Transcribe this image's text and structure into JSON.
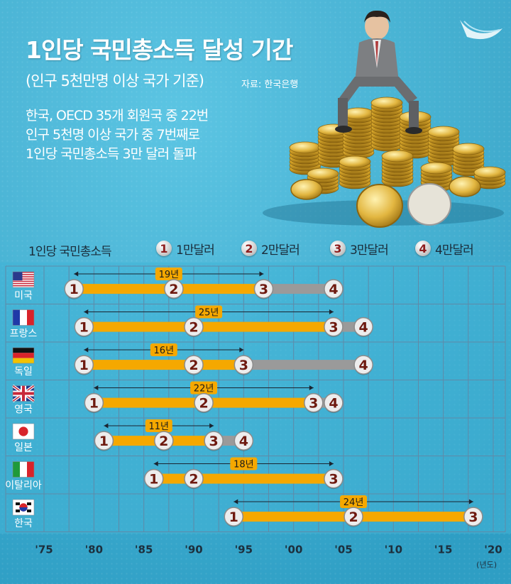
{
  "header": {
    "title": "1인당 국민총소득 달성 기간",
    "subtitle": "(인구 5천만명 이상 국가 기준)",
    "source": "자료: 한국은행",
    "description": [
      "한국, OECD 35개 회원국 중 22번",
      "인구 5천명 이상 국가 중 7번째로",
      "1인당 국민총소득 3만 달러 돌파"
    ]
  },
  "legend": {
    "title": "1인당 국민총소득",
    "items": [
      {
        "badge": "1",
        "label": "1만달러"
      },
      {
        "badge": "2",
        "label": "2만달러"
      },
      {
        "badge": "3",
        "label": "3만달러"
      },
      {
        "badge": "4",
        "label": "4만달러"
      }
    ]
  },
  "chart_data": {
    "type": "timeline",
    "x_ticks": [
      "'75",
      "'80",
      "'85",
      "'90",
      "'95",
      "'00",
      "'05",
      "'10",
      "'15",
      "'20"
    ],
    "x_unit": "(년도)",
    "xlim": [
      1973,
      2020
    ],
    "colors": {
      "primary": "#f5a800",
      "secondary": "#9a9a9a",
      "badge_text": "#6e1a10",
      "grid": "#5f8aa8"
    },
    "countries": [
      {
        "name": "미국",
        "flag": "us",
        "milestones": [
          {
            "level": 1,
            "year": 1978
          },
          {
            "level": 2,
            "year": 1988
          },
          {
            "level": 3,
            "year": 1997
          },
          {
            "level": 4,
            "year": 2004
          }
        ],
        "span_label": "19년",
        "span": [
          1978,
          1997
        ]
      },
      {
        "name": "프랑스",
        "flag": "fr",
        "milestones": [
          {
            "level": 1,
            "year": 1979
          },
          {
            "level": 2,
            "year": 1990
          },
          {
            "level": 3,
            "year": 2004
          },
          {
            "level": 4,
            "year": 2007
          }
        ],
        "span_label": "25년",
        "span": [
          1979,
          2004
        ]
      },
      {
        "name": "독일",
        "flag": "de",
        "milestones": [
          {
            "level": 1,
            "year": 1979
          },
          {
            "level": 2,
            "year": 1990
          },
          {
            "level": 3,
            "year": 1995
          },
          {
            "level": 4,
            "year": 2007
          }
        ],
        "span_label": "16년",
        "span": [
          1979,
          1995
        ]
      },
      {
        "name": "영국",
        "flag": "gb",
        "milestones": [
          {
            "level": 1,
            "year": 1980
          },
          {
            "level": 2,
            "year": 1991
          },
          {
            "level": 3,
            "year": 2002
          },
          {
            "level": 4,
            "year": 2004
          }
        ],
        "span_label": "22년",
        "span": [
          1980,
          2002
        ]
      },
      {
        "name": "일본",
        "flag": "jp",
        "milestones": [
          {
            "level": 1,
            "year": 1981
          },
          {
            "level": 2,
            "year": 1987
          },
          {
            "level": 3,
            "year": 1992
          },
          {
            "level": 4,
            "year": 1995
          }
        ],
        "span_label": "11년",
        "span": [
          1981,
          1992
        ]
      },
      {
        "name": "이탈리아",
        "flag": "it",
        "milestones": [
          {
            "level": 1,
            "year": 1986
          },
          {
            "level": 2,
            "year": 1990
          },
          {
            "level": 3,
            "year": 2004
          }
        ],
        "span_label": "18년",
        "span": [
          1986,
          2004
        ]
      },
      {
        "name": "한국",
        "flag": "kr",
        "milestones": [
          {
            "level": 1,
            "year": 1994
          },
          {
            "level": 2,
            "year": 2006
          },
          {
            "level": 3,
            "year": 2018
          }
        ],
        "span_label": "24년",
        "span": [
          1994,
          2018
        ]
      }
    ]
  }
}
